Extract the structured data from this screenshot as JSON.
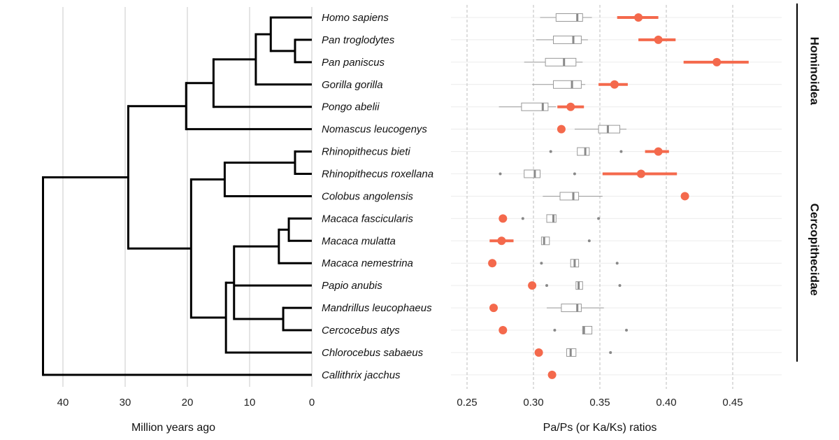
{
  "chart_data": [
    {
      "type": "tree",
      "title": "",
      "xlabel": "Million years ago",
      "xlim": [
        43.2,
        0
      ],
      "xticks": [
        40,
        30,
        20,
        10,
        0
      ],
      "grid": "vertical",
      "tips": [
        "Homo sapiens",
        "Pan troglodytes",
        "Pan paniscus",
        "Gorilla gorilla",
        "Pongo abelii",
        "Nomascus leucogenys",
        "Rhinopithecus bieti",
        "Rhinopithecus roxellana",
        "Colobus angolensis",
        "Macaca fascicularis",
        "Macaca mulatta",
        "Macaca nemestrina",
        "Papio anubis",
        "Mandrillus leucophaeus",
        "Cercocebus atys",
        "Chlorocebus sabaeus",
        "Callithrix jacchus"
      ],
      "nodes": [
        {
          "id": "n_pan",
          "age": 2.7,
          "children": [
            1,
            2
          ]
        },
        {
          "id": "n_hp",
          "age": 6.6,
          "children": [
            0,
            "n_pan"
          ]
        },
        {
          "id": "n_hpg",
          "age": 9.0,
          "children": [
            "n_hp",
            3
          ]
        },
        {
          "id": "n_hpgp",
          "age": 15.8,
          "children": [
            "n_hpg",
            4
          ]
        },
        {
          "id": "n_hom",
          "age": 20.2,
          "children": [
            "n_hpgp",
            5
          ]
        },
        {
          "id": "n_rhino",
          "age": 2.7,
          "children": [
            6,
            7
          ]
        },
        {
          "id": "n_colob",
          "age": 14.0,
          "children": [
            "n_rhino",
            8
          ]
        },
        {
          "id": "n_mac2",
          "age": 3.7,
          "children": [
            9,
            10
          ]
        },
        {
          "id": "n_mac3",
          "age": 5.3,
          "children": [
            "n_mac2",
            11
          ]
        },
        {
          "id": "n_mc",
          "age": 4.6,
          "children": [
            13,
            14
          ]
        },
        {
          "id": "n_pap",
          "age": 12.5,
          "children": [
            "n_mac3",
            12,
            "n_mc"
          ]
        },
        {
          "id": "n_cerc",
          "age": 13.8,
          "children": [
            "n_pap",
            15
          ]
        },
        {
          "id": "n_cercop",
          "age": 19.4,
          "children": [
            "n_colob",
            "n_cerc"
          ]
        },
        {
          "id": "n_cat",
          "age": 29.5,
          "children": [
            "n_hom",
            "n_cercop"
          ]
        },
        {
          "id": "n_root",
          "age": 43.2,
          "children": [
            "n_cat",
            16
          ]
        }
      ]
    },
    {
      "type": "box+point",
      "title": "",
      "xlabel": "Pa/Ps (or Ka/Ks) ratios",
      "xlim": [
        0.238,
        0.485
      ],
      "xticks": [
        0.25,
        0.3,
        0.35,
        0.4,
        0.45
      ],
      "xtick_labels": [
        "0.25",
        "0.30",
        "0.35",
        "0.40",
        "0.45"
      ],
      "grid": "dashed-vertical, solid-horizontal",
      "point_color": "#f4694c",
      "box_color": "#999999",
      "rows": [
        {
          "species": "Homo sapiens",
          "box": {
            "wlo": 0.305,
            "q1": 0.317,
            "med": 0.333,
            "q3": 0.337,
            "whi": 0.344,
            "outliers": []
          },
          "point": 0.379,
          "ci": [
            0.363,
            0.394
          ]
        },
        {
          "species": "Pan troglodytes",
          "box": {
            "wlo": 0.302,
            "q1": 0.315,
            "med": 0.33,
            "q3": 0.336,
            "whi": 0.341,
            "outliers": []
          },
          "point": 0.394,
          "ci": [
            0.379,
            0.407
          ]
        },
        {
          "species": "Pan paniscus",
          "box": {
            "wlo": 0.293,
            "q1": 0.309,
            "med": 0.323,
            "q3": 0.332,
            "whi": 0.337,
            "outliers": []
          },
          "point": 0.438,
          "ci": [
            0.413,
            0.462
          ]
        },
        {
          "species": "Gorilla gorilla",
          "box": {
            "wlo": 0.299,
            "q1": 0.315,
            "med": 0.329,
            "q3": 0.336,
            "whi": 0.339,
            "outliers": []
          },
          "point": 0.361,
          "ci": [
            0.349,
            0.371
          ]
        },
        {
          "species": "Pongo abelii",
          "box": {
            "wlo": 0.274,
            "q1": 0.291,
            "med": 0.307,
            "q3": 0.311,
            "whi": 0.317,
            "outliers": []
          },
          "point": 0.328,
          "ci": [
            0.318,
            0.338
          ]
        },
        {
          "species": "Nomascus leucogenys",
          "box": {
            "wlo": 0.331,
            "q1": 0.349,
            "med": 0.356,
            "q3": 0.365,
            "whi": 0.37,
            "outliers": []
          },
          "point": 0.321,
          "ci": null
        },
        {
          "species": "Rhinopithecus bieti",
          "box": {
            "wlo": 0.333,
            "q1": 0.333,
            "med": 0.339,
            "q3": 0.342,
            "whi": 0.342,
            "outliers": [
              0.313,
              0.366
            ]
          },
          "point": 0.394,
          "ci": [
            0.384,
            0.402
          ]
        },
        {
          "species": "Rhinopithecus roxellana",
          "box": {
            "wlo": 0.293,
            "q1": 0.293,
            "med": 0.301,
            "q3": 0.305,
            "whi": 0.305,
            "outliers": [
              0.275,
              0.331
            ]
          },
          "point": 0.381,
          "ci": [
            0.352,
            0.408
          ]
        },
        {
          "species": "Colobus angolensis",
          "box": {
            "wlo": 0.307,
            "q1": 0.32,
            "med": 0.33,
            "q3": 0.334,
            "whi": 0.352,
            "outliers": []
          },
          "point": 0.414,
          "ci": null
        },
        {
          "species": "Macaca fascicularis",
          "box": {
            "wlo": 0.31,
            "q1": 0.31,
            "med": 0.315,
            "q3": 0.317,
            "whi": 0.317,
            "outliers": [
              0.292,
              0.349
            ]
          },
          "point": 0.277,
          "ci": null
        },
        {
          "species": "Macaca mulatta",
          "box": {
            "wlo": 0.306,
            "q1": 0.306,
            "med": 0.308,
            "q3": 0.312,
            "whi": 0.312,
            "outliers": [
              0.342
            ]
          },
          "point": 0.276,
          "ci": [
            0.267,
            0.285
          ]
        },
        {
          "species": "Macaca nemestrina",
          "box": {
            "wlo": 0.328,
            "q1": 0.328,
            "med": 0.331,
            "q3": 0.334,
            "whi": 0.334,
            "outliers": [
              0.306,
              0.363
            ]
          },
          "point": 0.269,
          "ci": null
        },
        {
          "species": "Papio anubis",
          "box": {
            "wlo": 0.332,
            "q1": 0.332,
            "med": 0.334,
            "q3": 0.337,
            "whi": 0.337,
            "outliers": [
              0.31,
              0.365
            ]
          },
          "point": 0.299,
          "ci": null
        },
        {
          "species": "Mandrillus leucophaeus",
          "box": {
            "wlo": 0.31,
            "q1": 0.321,
            "med": 0.333,
            "q3": 0.336,
            "whi": 0.353,
            "outliers": []
          },
          "point": 0.27,
          "ci": null
        },
        {
          "species": "Cercocebus atys",
          "box": {
            "wlo": 0.337,
            "q1": 0.337,
            "med": 0.338,
            "q3": 0.344,
            "whi": 0.344,
            "outliers": [
              0.316,
              0.37
            ]
          },
          "point": 0.277,
          "ci": null
        },
        {
          "species": "Chlorocebus sabaeus",
          "box": {
            "wlo": 0.325,
            "q1": 0.325,
            "med": 0.328,
            "q3": 0.332,
            "whi": 0.332,
            "outliers": [
              0.358
            ]
          },
          "point": 0.304,
          "ci": null
        },
        {
          "species": "Callithrix jacchus",
          "box": null,
          "point": 0.314,
          "ci": null
        }
      ],
      "groups": [
        {
          "label": "Hominoidea",
          "first": 0,
          "last": 5
        },
        {
          "label": "Cercopithecidae",
          "first": 6,
          "last": 15
        }
      ]
    }
  ]
}
